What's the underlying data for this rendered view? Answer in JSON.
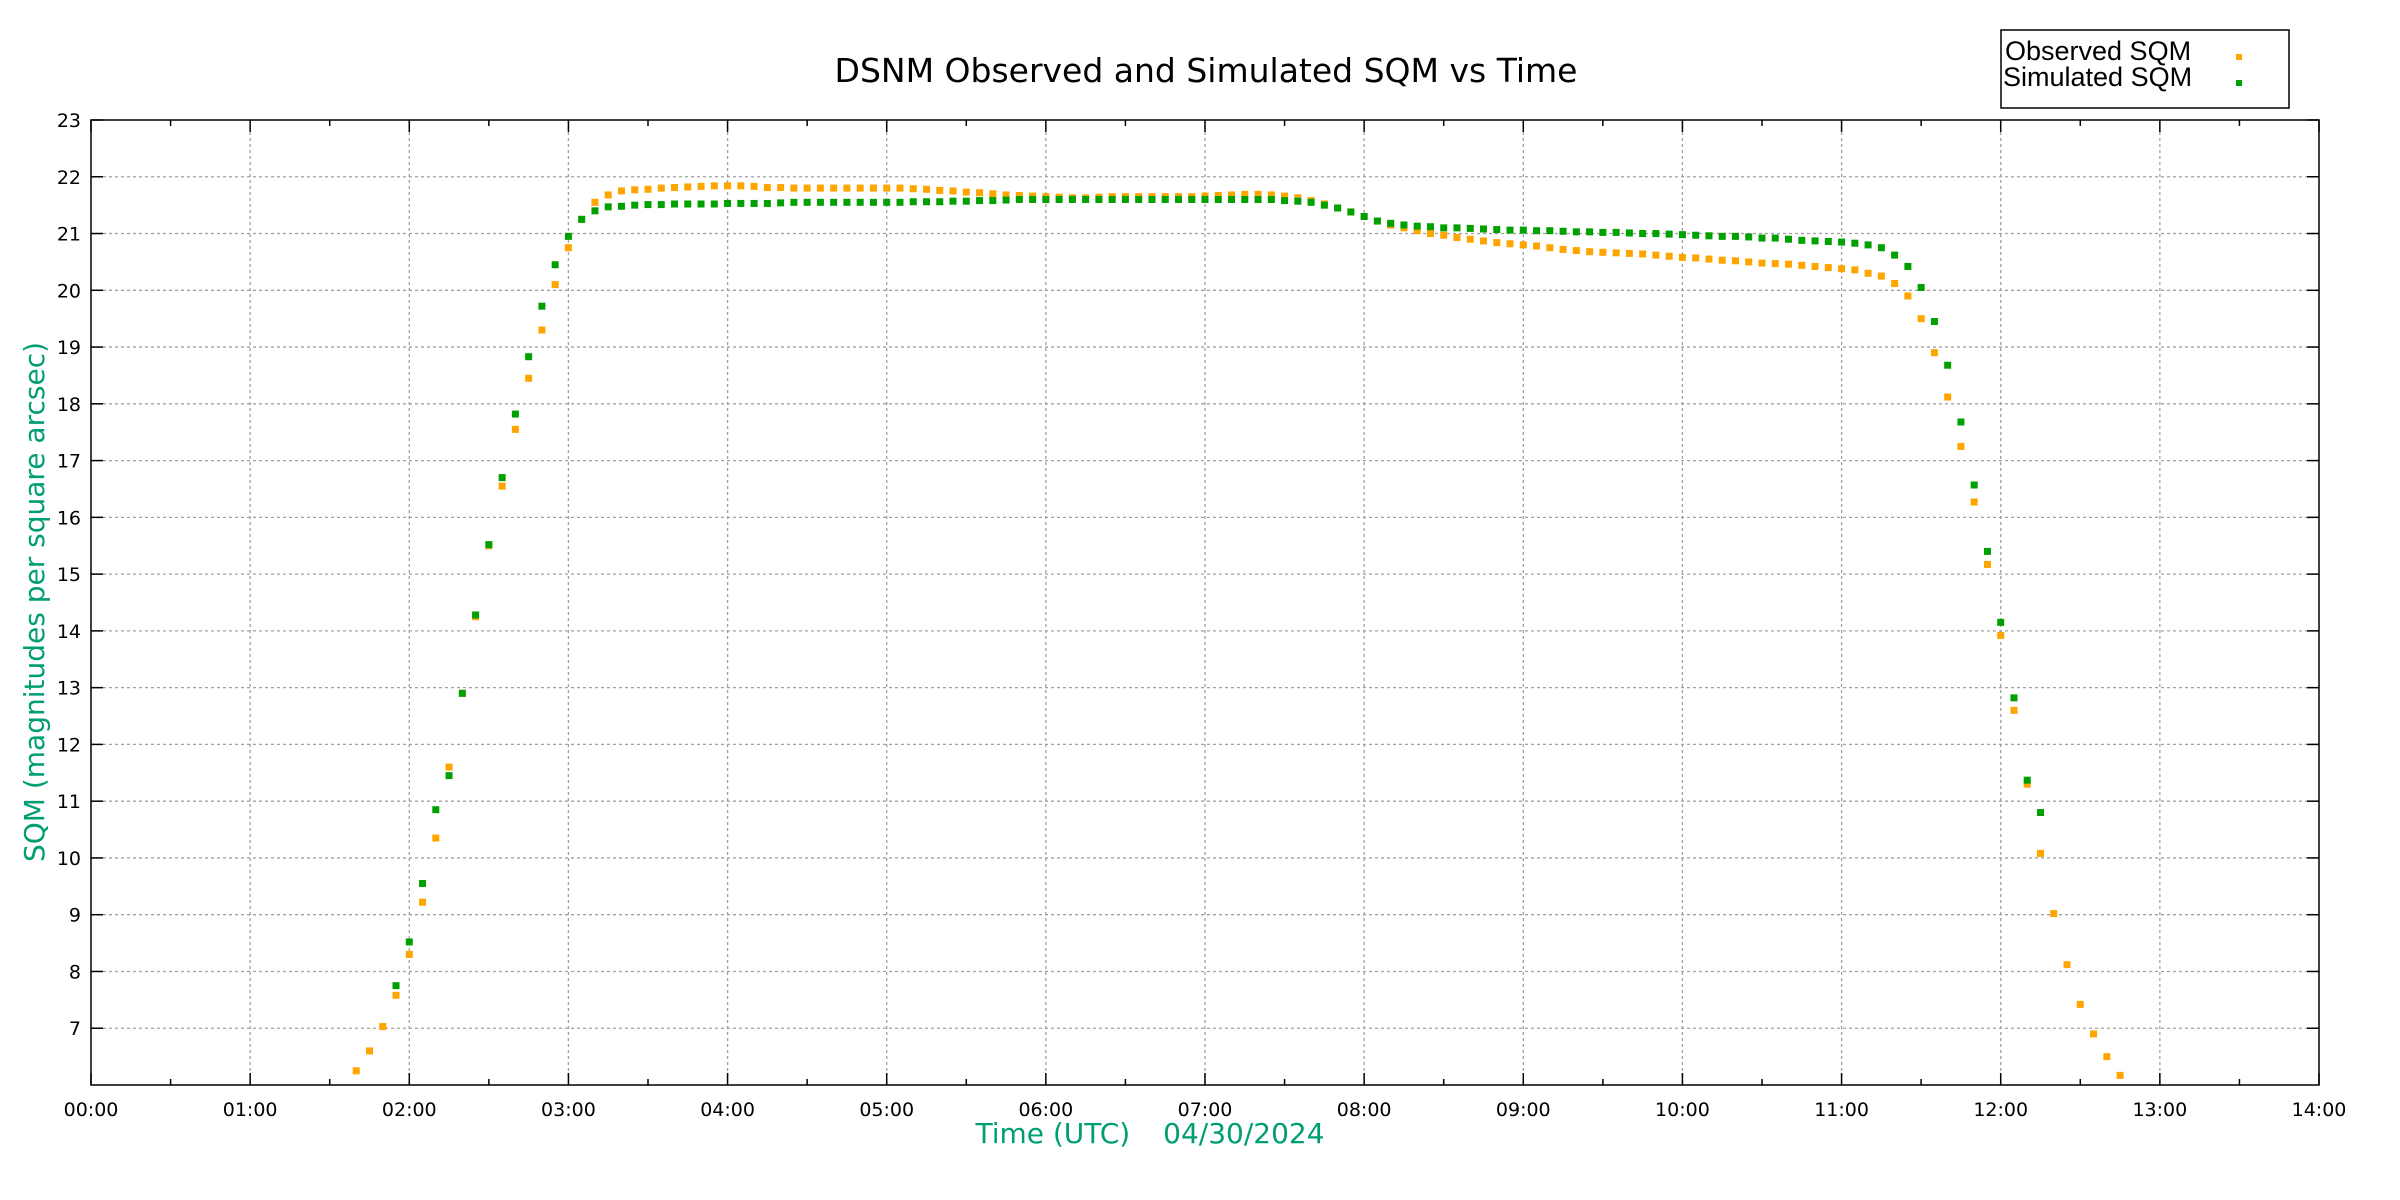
{
  "chart_data": {
    "type": "scatter",
    "title": "DSNM Observed and Simulated SQM vs Time",
    "xlabel": "Time (UTC)",
    "xlabel_date": "04/30/2024",
    "ylabel": "SQM (magnitudes per square arcsec)",
    "xlim": [
      "00:00",
      "14:00"
    ],
    "ylim": [
      6,
      23
    ],
    "xticks": [
      "00:00",
      "01:00",
      "02:00",
      "03:00",
      "04:00",
      "05:00",
      "06:00",
      "07:00",
      "08:00",
      "09:00",
      "10:00",
      "11:00",
      "12:00",
      "13:00",
      "14:00"
    ],
    "yticks": [
      7,
      8,
      9,
      10,
      11,
      12,
      13,
      14,
      15,
      16,
      17,
      18,
      19,
      20,
      21,
      22,
      23
    ],
    "grid": true,
    "legend_position": "top-right",
    "series": [
      {
        "name": "Observed SQM",
        "color": "#ffa500",
        "x": [
          "01:40",
          "01:45",
          "01:50",
          "01:55",
          "02:00",
          "02:05",
          "02:10",
          "02:15",
          "02:20",
          "02:25",
          "02:30",
          "02:35",
          "02:40",
          "02:45",
          "02:50",
          "02:55",
          "03:00",
          "03:05",
          "03:10",
          "03:15",
          "03:20",
          "03:25",
          "03:30",
          "03:35",
          "03:40",
          "03:45",
          "03:50",
          "03:55",
          "04:00",
          "04:05",
          "04:10",
          "04:15",
          "04:20",
          "04:25",
          "04:30",
          "04:35",
          "04:40",
          "04:45",
          "04:50",
          "04:55",
          "05:00",
          "05:05",
          "05:10",
          "05:15",
          "05:20",
          "05:25",
          "05:30",
          "05:35",
          "05:40",
          "05:45",
          "05:50",
          "05:55",
          "06:00",
          "06:05",
          "06:10",
          "06:15",
          "06:20",
          "06:25",
          "06:30",
          "06:35",
          "06:40",
          "06:45",
          "06:50",
          "06:55",
          "07:00",
          "07:05",
          "07:10",
          "07:15",
          "07:20",
          "07:25",
          "07:30",
          "07:35",
          "07:40",
          "07:45",
          "07:50",
          "07:55",
          "08:00",
          "08:05",
          "08:10",
          "08:15",
          "08:20",
          "08:25",
          "08:30",
          "08:35",
          "08:40",
          "08:45",
          "08:50",
          "08:55",
          "09:00",
          "09:05",
          "09:10",
          "09:15",
          "09:20",
          "09:25",
          "09:30",
          "09:35",
          "09:40",
          "09:45",
          "09:50",
          "09:55",
          "10:00",
          "10:05",
          "10:10",
          "10:15",
          "10:20",
          "10:25",
          "10:30",
          "10:35",
          "10:40",
          "10:45",
          "10:50",
          "10:55",
          "11:00",
          "11:05",
          "11:10",
          "11:15",
          "11:20",
          "11:25",
          "11:30",
          "11:35",
          "11:40",
          "11:45",
          "11:50",
          "11:55",
          "12:00",
          "12:05",
          "12:10",
          "12:15",
          "12:20",
          "12:25",
          "12:30",
          "12:35",
          "12:40",
          "12:45"
        ],
        "y": [
          6.25,
          6.6,
          7.03,
          7.58,
          8.3,
          9.22,
          10.35,
          11.6,
          12.9,
          14.25,
          15.5,
          16.55,
          17.55,
          18.45,
          19.3,
          20.1,
          20.75,
          21.25,
          21.55,
          21.68,
          21.75,
          21.77,
          21.78,
          21.8,
          21.81,
          21.82,
          21.83,
          21.84,
          21.84,
          21.84,
          21.83,
          21.81,
          21.81,
          21.8,
          21.8,
          21.8,
          21.8,
          21.8,
          21.8,
          21.8,
          21.8,
          21.8,
          21.79,
          21.78,
          21.76,
          21.75,
          21.73,
          21.72,
          21.7,
          21.68,
          21.67,
          21.66,
          21.65,
          21.64,
          21.63,
          21.63,
          21.64,
          21.65,
          21.65,
          21.65,
          21.65,
          21.65,
          21.65,
          21.65,
          21.66,
          21.67,
          21.68,
          21.69,
          21.69,
          21.68,
          21.66,
          21.63,
          21.58,
          21.52,
          21.45,
          21.38,
          21.3,
          21.22,
          21.15,
          21.1,
          21.05,
          21.0,
          20.97,
          20.93,
          20.9,
          20.87,
          20.84,
          20.82,
          20.8,
          20.78,
          20.75,
          20.72,
          20.7,
          20.68,
          20.67,
          20.66,
          20.65,
          20.64,
          20.62,
          20.6,
          20.58,
          20.57,
          20.55,
          20.53,
          20.52,
          20.5,
          20.48,
          20.47,
          20.46,
          20.44,
          20.42,
          20.4,
          20.38,
          20.36,
          20.3,
          20.25,
          20.12,
          19.9,
          19.5,
          18.9,
          18.12,
          17.25,
          16.27,
          15.17,
          13.92,
          12.6,
          11.3,
          10.08,
          9.02,
          8.12,
          7.42,
          6.9,
          6.5,
          6.17
        ]
      },
      {
        "name": "Simulated SQM",
        "color": "#00a000",
        "x": [
          "01:55",
          "02:00",
          "02:05",
          "02:10",
          "02:15",
          "02:20",
          "02:25",
          "02:30",
          "02:35",
          "02:40",
          "02:45",
          "02:50",
          "02:55",
          "03:00",
          "03:05",
          "03:10",
          "03:15",
          "03:20",
          "03:25",
          "03:30",
          "03:35",
          "03:40",
          "03:45",
          "03:50",
          "03:55",
          "04:00",
          "04:05",
          "04:10",
          "04:15",
          "04:20",
          "04:25",
          "04:30",
          "04:35",
          "04:40",
          "04:45",
          "04:50",
          "04:55",
          "05:00",
          "05:05",
          "05:10",
          "05:15",
          "05:20",
          "05:25",
          "05:30",
          "05:35",
          "05:40",
          "05:45",
          "05:50",
          "05:55",
          "06:00",
          "06:05",
          "06:10",
          "06:15",
          "06:20",
          "06:25",
          "06:30",
          "06:35",
          "06:40",
          "06:45",
          "06:50",
          "06:55",
          "07:00",
          "07:05",
          "07:10",
          "07:15",
          "07:20",
          "07:25",
          "07:30",
          "07:35",
          "07:40",
          "07:45",
          "07:50",
          "07:55",
          "08:00",
          "08:05",
          "08:10",
          "08:15",
          "08:20",
          "08:25",
          "08:30",
          "08:35",
          "08:40",
          "08:45",
          "08:50",
          "08:55",
          "09:00",
          "09:05",
          "09:10",
          "09:15",
          "09:20",
          "09:25",
          "09:30",
          "09:35",
          "09:40",
          "09:45",
          "09:50",
          "09:55",
          "10:00",
          "10:05",
          "10:10",
          "10:15",
          "10:20",
          "10:25",
          "10:30",
          "10:35",
          "10:40",
          "10:45",
          "10:50",
          "10:55",
          "11:00",
          "11:05",
          "11:10",
          "11:15",
          "11:20",
          "11:25",
          "11:30",
          "11:35",
          "11:40",
          "11:45",
          "11:50",
          "11:55",
          "12:00",
          "12:05",
          "12:10",
          "12:15"
        ],
        "y": [
          7.75,
          8.52,
          9.55,
          10.85,
          11.45,
          12.9,
          14.28,
          15.52,
          16.7,
          17.82,
          18.83,
          19.72,
          20.45,
          20.95,
          21.25,
          21.4,
          21.47,
          21.48,
          21.5,
          21.51,
          21.51,
          21.52,
          21.52,
          21.52,
          21.52,
          21.53,
          21.53,
          21.53,
          21.53,
          21.54,
          21.55,
          21.55,
          21.55,
          21.55,
          21.55,
          21.55,
          21.55,
          21.55,
          21.55,
          21.56,
          21.56,
          21.56,
          21.57,
          21.57,
          21.58,
          21.58,
          21.59,
          21.6,
          21.6,
          21.6,
          21.6,
          21.6,
          21.6,
          21.6,
          21.6,
          21.6,
          21.6,
          21.6,
          21.6,
          21.6,
          21.6,
          21.6,
          21.6,
          21.6,
          21.6,
          21.6,
          21.6,
          21.58,
          21.57,
          21.55,
          21.5,
          21.45,
          21.38,
          21.3,
          21.22,
          21.18,
          21.15,
          21.13,
          21.12,
          21.1,
          21.1,
          21.09,
          21.08,
          21.07,
          21.06,
          21.06,
          21.05,
          21.05,
          21.04,
          21.03,
          21.03,
          21.02,
          21.02,
          21.01,
          21.0,
          21.0,
          20.99,
          20.98,
          20.97,
          20.96,
          20.95,
          20.95,
          20.94,
          20.92,
          20.92,
          20.9,
          20.88,
          20.87,
          20.86,
          20.85,
          20.83,
          20.8,
          20.75,
          20.62,
          20.42,
          20.05,
          19.45,
          18.68,
          17.68,
          16.57,
          15.4,
          14.15,
          12.82,
          11.37,
          10.8
        ]
      }
    ]
  }
}
